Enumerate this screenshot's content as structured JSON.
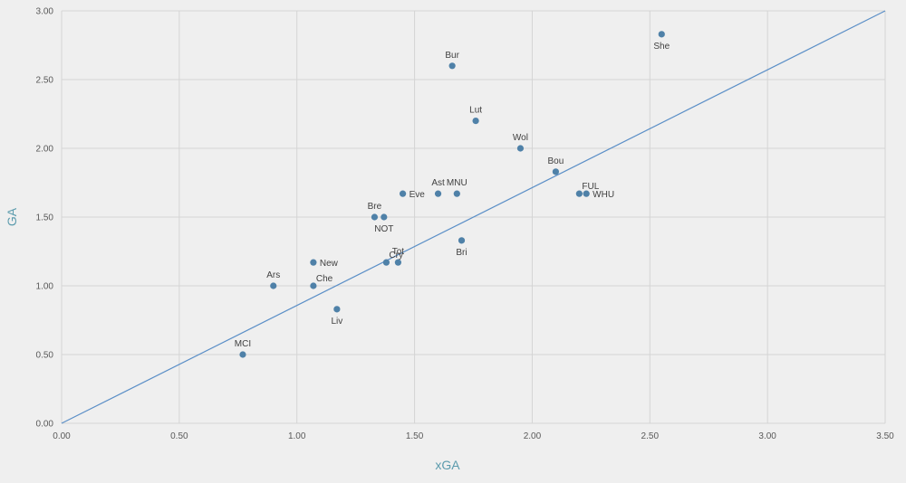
{
  "chart_data": {
    "type": "scatter",
    "title": "",
    "xlabel": "xGA",
    "ylabel": "GA",
    "xlim": [
      0,
      3.5
    ],
    "ylim": [
      0,
      3.0
    ],
    "x_ticks": [
      "0.00",
      "0.50",
      "1.00",
      "1.50",
      "2.00",
      "2.50",
      "3.00",
      "3.50"
    ],
    "y_ticks": [
      "0.00",
      "0.50",
      "1.00",
      "1.50",
      "2.00",
      "2.50",
      "3.00"
    ],
    "grid": true,
    "point_color": "#4f81a8",
    "line_color": "#5b8fc7",
    "reference_line": {
      "from": [
        0,
        0
      ],
      "to": [
        3.5,
        3.0
      ]
    },
    "points": [
      {
        "label": "She",
        "x": 2.55,
        "y": 2.83,
        "label_pos": "below"
      },
      {
        "label": "Bur",
        "x": 1.66,
        "y": 2.6,
        "label_pos": "above"
      },
      {
        "label": "Lut",
        "x": 1.76,
        "y": 2.2,
        "label_pos": "above"
      },
      {
        "label": "Wol",
        "x": 1.95,
        "y": 2.0,
        "label_pos": "above"
      },
      {
        "label": "Bou",
        "x": 2.1,
        "y": 1.83,
        "label_pos": "above"
      },
      {
        "label": "FUL",
        "x": 2.2,
        "y": 1.67,
        "label_pos": "above-right"
      },
      {
        "label": "WHU",
        "x": 2.23,
        "y": 1.67,
        "label_pos": "right"
      },
      {
        "label": "Ast",
        "x": 1.6,
        "y": 1.67,
        "label_pos": "above"
      },
      {
        "label": "MNU",
        "x": 1.68,
        "y": 1.67,
        "label_pos": "above"
      },
      {
        "label": "Eve",
        "x": 1.45,
        "y": 1.67,
        "label_pos": "right"
      },
      {
        "label": "Bre",
        "x": 1.33,
        "y": 1.5,
        "label_pos": "above"
      },
      {
        "label": "NOT",
        "x": 1.37,
        "y": 1.5,
        "label_pos": "below"
      },
      {
        "label": "Bri",
        "x": 1.7,
        "y": 1.33,
        "label_pos": "below"
      },
      {
        "label": "Tot",
        "x": 1.43,
        "y": 1.17,
        "label_pos": "above"
      },
      {
        "label": "Cry",
        "x": 1.38,
        "y": 1.17,
        "label_pos": "above-right"
      },
      {
        "label": "New",
        "x": 1.07,
        "y": 1.17,
        "label_pos": "right"
      },
      {
        "label": "Ars",
        "x": 0.9,
        "y": 1.0,
        "label_pos": "above"
      },
      {
        "label": "Che",
        "x": 1.07,
        "y": 1.0,
        "label_pos": "above-right"
      },
      {
        "label": "Liv",
        "x": 1.17,
        "y": 0.83,
        "label_pos": "below"
      },
      {
        "label": "MCI",
        "x": 0.77,
        "y": 0.5,
        "label_pos": "above"
      }
    ]
  }
}
